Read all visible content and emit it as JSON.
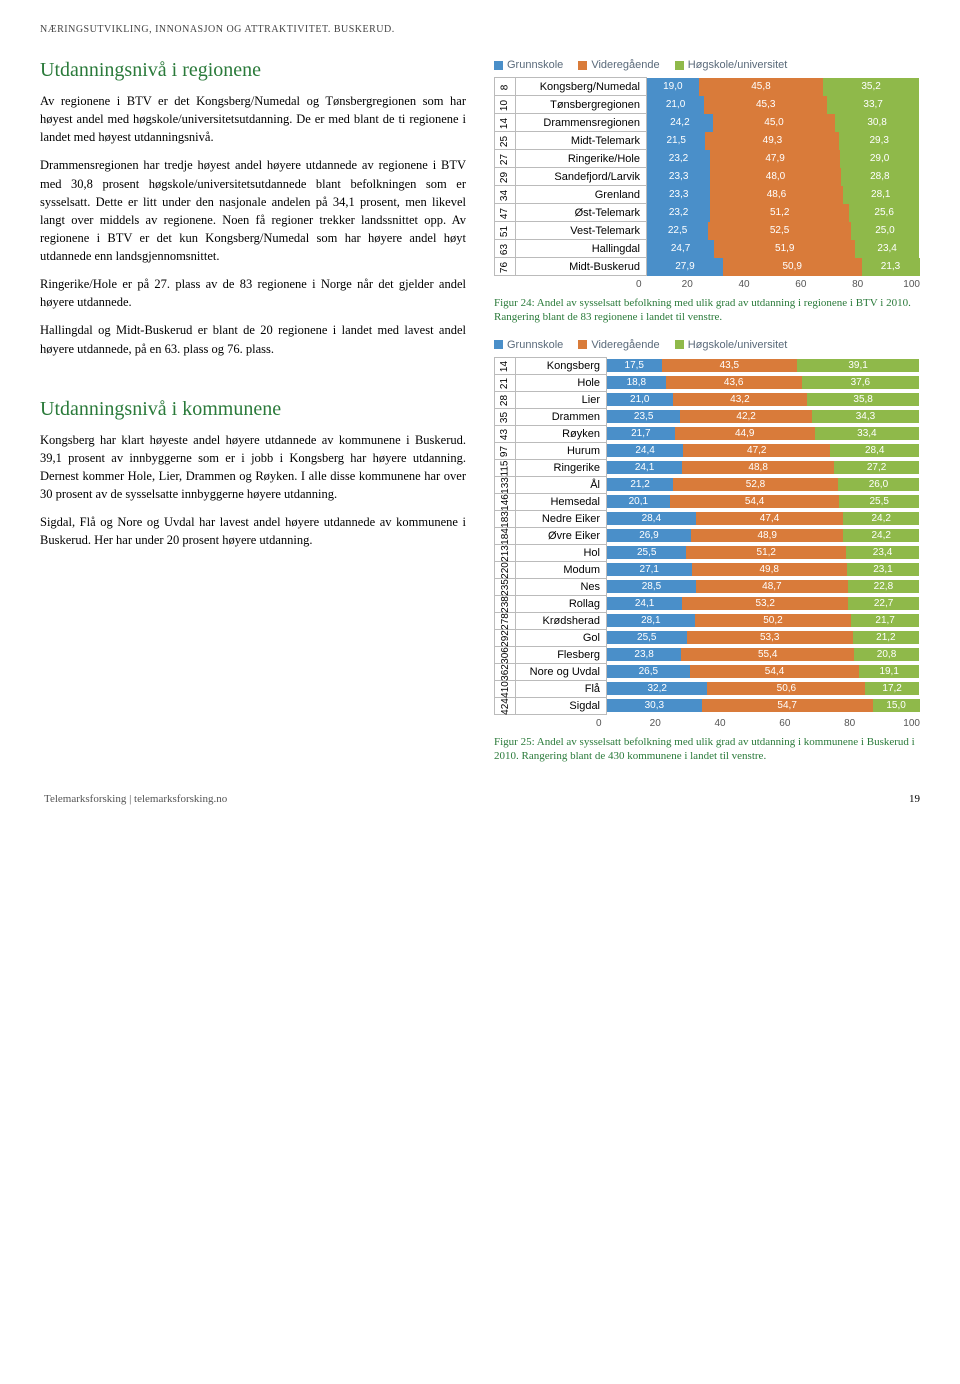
{
  "header": "NÆRINGSUTVIKLING, INNONASJON OG ATTRAKTIVITET. BUSKERUD.",
  "section1": {
    "title": "Utdanningsnivå i regionene",
    "p1": "Av regionene i BTV er det Kongsberg/Numedal og Tønsbergregionen som har høyest andel med høgskole/universitetsutdanning. De er med blant de ti regionene i landet med høyest utdanningsnivå.",
    "p2": "Drammensregionen har tredje høyest andel høyere utdannede av regionene i BTV med 30,8 prosent høgskole/universitetsutdannede blant befolkningen som er sysselsatt. Dette er litt under den nasjonale andelen på 34,1 prosent, men likevel langt over middels av regionene. Noen få regioner trekker landssnittet opp. Av regionene i BTV er det kun Kongsberg/Numedal som har høyere andel høyt utdannede enn landsgjennomsnittet.",
    "p3": "Ringerike/Hole er på 27. plass av de 83 regionene i Norge når det gjelder andel høyere utdannede.",
    "p4": "Hallingdal og Midt-Buskerud er blant de 20 regionene i landet med lavest andel høyere utdannede, på en 63. plass og 76. plass."
  },
  "section2": {
    "title": "Utdanningsnivå i kommunene",
    "p1": "Kongsberg har klart høyeste andel høyere utdannede av kommunene i Buskerud. 39,1 prosent av innbyggerne som er i jobb i Kongsberg har høyere utdanning. Dernest kommer Hole, Lier, Drammen og Røyken. I alle disse kommunene har over 30 prosent av de sysselsatte innbyggerne høyere utdanning.",
    "p2": "Sigdal, Flå og Nore og Uvdal har lavest andel høyere utdannede av kommunene i Buskerud. Her har under 20 prosent høyere utdanning."
  },
  "legend_labels": [
    "Grunnskole",
    "Videregående",
    "Høgskole/universitet"
  ],
  "colors": {
    "c1": "#4a8fc9",
    "c2": "#d97b3a",
    "c3": "#8fb94a",
    "grid": "#e0e0e0",
    "legend_text": "#5a6a7a"
  },
  "chart1": {
    "rows": [
      {
        "rank": "8",
        "name": "Kongsberg/Numedal",
        "v": [
          19.0,
          45.8,
          35.2
        ]
      },
      {
        "rank": "10",
        "name": "Tønsbergregionen",
        "v": [
          21.0,
          45.3,
          33.7
        ]
      },
      {
        "rank": "14",
        "name": "Drammensregionen",
        "v": [
          24.2,
          45.0,
          30.8
        ]
      },
      {
        "rank": "25",
        "name": "Midt-Telemark",
        "v": [
          21.5,
          49.3,
          29.3
        ]
      },
      {
        "rank": "27",
        "name": "Ringerike/Hole",
        "v": [
          23.2,
          47.9,
          29.0
        ]
      },
      {
        "rank": "29",
        "name": "Sandefjord/Larvik",
        "v": [
          23.3,
          48.0,
          28.8
        ]
      },
      {
        "rank": "34",
        "name": "Grenland",
        "v": [
          23.3,
          48.6,
          28.1
        ]
      },
      {
        "rank": "47",
        "name": "Øst-Telemark",
        "v": [
          23.2,
          51.2,
          25.6
        ]
      },
      {
        "rank": "51",
        "name": "Vest-Telemark",
        "v": [
          22.5,
          52.5,
          25.0
        ]
      },
      {
        "rank": "63",
        "name": "Hallingdal",
        "v": [
          24.7,
          51.9,
          23.4
        ]
      },
      {
        "rank": "76",
        "name": "Midt-Buskerud",
        "v": [
          27.9,
          50.9,
          21.3
        ]
      }
    ],
    "xmax": 100,
    "ticks": [
      0,
      20,
      40,
      60,
      80,
      100
    ],
    "caption": "Figur 24: Andel av sysselsatt befolkning med ulik grad av utdanning i regionene i BTV i 2010. Rangering blant de 83 regionene i landet til venstre."
  },
  "chart2": {
    "rows": [
      {
        "rank": "14",
        "name": "Kongsberg",
        "v": [
          17.5,
          43.5,
          39.1
        ]
      },
      {
        "rank": "21",
        "name": "Hole",
        "v": [
          18.8,
          43.6,
          37.6
        ]
      },
      {
        "rank": "28",
        "name": "Lier",
        "v": [
          21.0,
          43.2,
          35.8
        ]
      },
      {
        "rank": "35",
        "name": "Drammen",
        "v": [
          23.5,
          42.2,
          34.3
        ]
      },
      {
        "rank": "43",
        "name": "Røyken",
        "v": [
          21.7,
          44.9,
          33.4
        ]
      },
      {
        "rank": "97",
        "name": "Hurum",
        "v": [
          24.4,
          47.2,
          28.4
        ]
      },
      {
        "rank": "115",
        "name": "Ringerike",
        "v": [
          24.1,
          48.8,
          27.2
        ]
      },
      {
        "rank": "133",
        "name": "Ål",
        "v": [
          21.2,
          52.8,
          26.0
        ]
      },
      {
        "rank": "146",
        "name": "Hemsedal",
        "v": [
          20.1,
          54.4,
          25.5
        ]
      },
      {
        "rank": "183",
        "name": "Nedre Eiker",
        "v": [
          28.4,
          47.4,
          24.2
        ]
      },
      {
        "rank": "184",
        "name": "Øvre Eiker",
        "v": [
          26.9,
          48.9,
          24.2
        ]
      },
      {
        "rank": "213",
        "name": "Hol",
        "v": [
          25.5,
          51.2,
          23.4
        ]
      },
      {
        "rank": "220",
        "name": "Modum",
        "v": [
          27.1,
          49.8,
          23.1
        ]
      },
      {
        "rank": "235",
        "name": "Nes",
        "v": [
          28.5,
          48.7,
          22.8
        ]
      },
      {
        "rank": "238",
        "name": "Rollag",
        "v": [
          24.1,
          53.2,
          22.7
        ]
      },
      {
        "rank": "278",
        "name": "Krødsherad",
        "v": [
          28.1,
          50.2,
          21.7
        ]
      },
      {
        "rank": "292",
        "name": "Gol",
        "v": [
          25.5,
          53.3,
          21.2
        ]
      },
      {
        "rank": "306",
        "name": "Flesberg",
        "v": [
          23.8,
          55.4,
          20.8
        ]
      },
      {
        "rank": "362",
        "name": "Nore og Uvdal",
        "v": [
          26.5,
          54.4,
          19.1
        ]
      },
      {
        "rank": "410",
        "name": "Flå",
        "v": [
          32.2,
          50.6,
          17.2
        ]
      },
      {
        "rank": "424",
        "name": "Sigdal",
        "v": [
          30.3,
          54.7,
          15.0
        ]
      }
    ],
    "xmax": 100,
    "ticks": [
      0,
      20,
      40,
      60,
      80,
      100
    ],
    "caption": "Figur 25: Andel av sysselsatt befolkning med ulik grad av utdanning i kommunene i Buskerud i 2010. Rangering blant de 430 kommunene i landet til venstre."
  },
  "footer": {
    "left": "Telemarksforsking  |  telemarksforsking.no",
    "page": "19"
  }
}
